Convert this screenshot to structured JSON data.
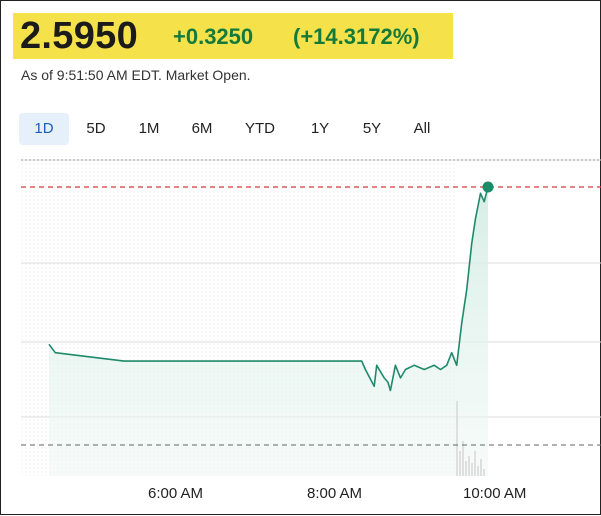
{
  "quote": {
    "price": "2.5950",
    "change": "+0.3250",
    "change_percent": "(+14.3172%)",
    "status": "As of 9:51:50 AM EDT. Market Open."
  },
  "range_tabs": [
    {
      "label": "1D",
      "active": true
    },
    {
      "label": "5D",
      "active": false
    },
    {
      "label": "1M",
      "active": false
    },
    {
      "label": "6M",
      "active": false
    },
    {
      "label": "YTD",
      "active": false
    },
    {
      "label": "1Y",
      "active": false
    },
    {
      "label": "5Y",
      "active": false
    },
    {
      "label": "All",
      "active": false
    }
  ],
  "colors": {
    "highlight": "#f5e24a",
    "positive": "#137a3c",
    "line": "#1f8a6a",
    "reference_line": "#d33a3a",
    "active_tab_bg": "#e6f0fb",
    "active_tab_text": "#1a5fb4"
  },
  "chart_data": {
    "type": "line",
    "title": "",
    "xlabel": "",
    "ylabel": "",
    "x_tick_labels": [
      "6:00 AM",
      "8:00 AM",
      "10:00 AM"
    ],
    "grid": true,
    "series": [
      {
        "values_time_price": [
          [
            "4:00",
            2.22
          ],
          [
            "4:05",
            2.2
          ],
          [
            "5:00",
            2.18
          ],
          [
            "8:10",
            2.18
          ],
          [
            "8:13",
            2.16
          ],
          [
            "8:20",
            2.12
          ],
          [
            "8:22",
            2.17
          ],
          [
            "8:28",
            2.14
          ],
          [
            "8:31",
            2.13
          ],
          [
            "8:33",
            2.11
          ],
          [
            "8:37",
            2.17
          ],
          [
            "8:41",
            2.14
          ],
          [
            "8:45",
            2.16
          ],
          [
            "8:52",
            2.17
          ],
          [
            "9:00",
            2.16
          ],
          [
            "9:08",
            2.17
          ],
          [
            "9:13",
            2.16
          ],
          [
            "9:18",
            2.17
          ],
          [
            "9:22",
            2.2
          ],
          [
            "9:26",
            2.17
          ],
          [
            "9:30",
            2.27
          ],
          [
            "9:34",
            2.35
          ],
          [
            "9:38",
            2.46
          ],
          [
            "9:41",
            2.52
          ],
          [
            "9:45",
            2.58
          ],
          [
            "9:48",
            2.56
          ],
          [
            "9:51",
            2.595
          ]
        ]
      }
    ],
    "reference_line_price": 2.595,
    "lower_reference_price": 1.98
  }
}
